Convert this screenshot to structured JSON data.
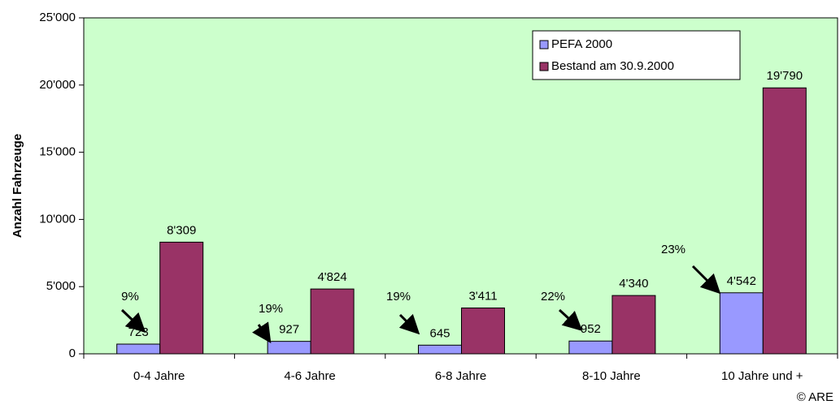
{
  "chart_data": {
    "type": "bar",
    "y_label": "Anzahl Fahrzeuge",
    "categories": [
      "0-4 Jahre",
      "4-6 Jahre",
      "6-8 Jahre",
      "8-10 Jahre",
      "10 Jahre und +"
    ],
    "series": [
      {
        "name": "PEFA 2000",
        "color": "#9999ff",
        "values": [
          723,
          927,
          645,
          952,
          4542
        ],
        "value_labels": [
          "723",
          "927",
          "645",
          "952",
          "4'542"
        ]
      },
      {
        "name": "Bestand am 30.9.2000",
        "color": "#993366",
        "values": [
          8309,
          4824,
          3411,
          4340,
          19790
        ],
        "value_labels": [
          "8'309",
          "4'824",
          "3'411",
          "4'340",
          "19'790"
        ]
      }
    ],
    "ylim": [
      0,
      25000
    ],
    "yticks": [
      0,
      {
        "value": 5000,
        "label": "5'000"
      },
      {
        "value": 10000,
        "label": "10'000"
      },
      {
        "value": 15000,
        "label": "15'000"
      },
      {
        "value": 20000,
        "label": "20'000"
      },
      {
        "value": 25000,
        "label": "25'000"
      }
    ],
    "annotations": [
      {
        "text": "9%"
      },
      {
        "text": "19%"
      },
      {
        "text": "19%"
      },
      {
        "text": "22%"
      },
      {
        "text": "23%"
      }
    ],
    "legend": "upper right",
    "background": "#ccffcc",
    "credit": "© ARE"
  }
}
